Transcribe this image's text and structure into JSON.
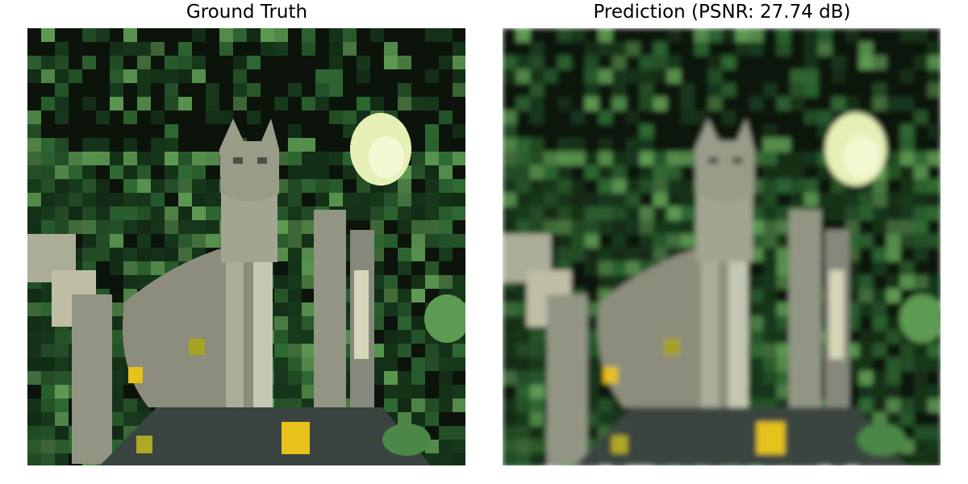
{
  "panels": [
    {
      "title": "Ground Truth",
      "blurred": false
    },
    {
      "title": "Prediction (PSNR: 27.74 dB)",
      "blurred": true
    }
  ],
  "scene": {
    "subject": "lynx-cat",
    "colors": {
      "background_dark": "#0b130b",
      "foliage_dark": "#173a1c",
      "foliage_mid": "#2f6a33",
      "foliage_light": "#5d9a52",
      "moon_glow": "#e6f0b6",
      "cat_fur": "#8c8d7c",
      "cat_fur_light": "#c5c7b4",
      "post_light": "#d8d6b8",
      "post_shadow": "#59605a",
      "yellow_flower": "#e6c21a",
      "ground": "#3a4440"
    }
  }
}
